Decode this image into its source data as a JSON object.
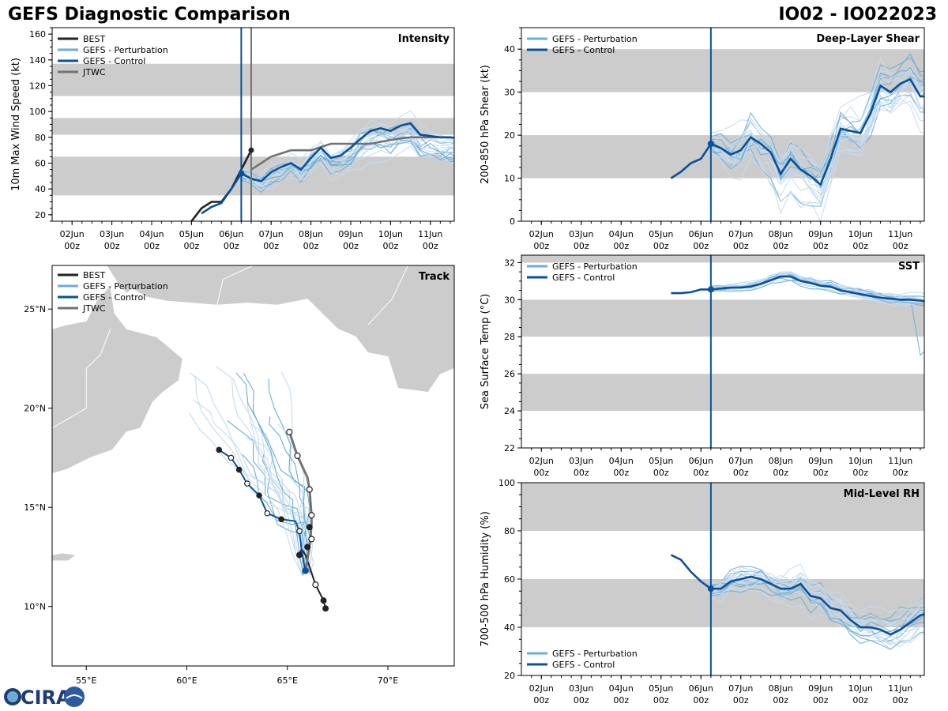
{
  "header": {
    "title_left": "GEFS Diagnostic Comparison",
    "title_right": "IO02 - IO022023"
  },
  "logo": {
    "text": "CIRA",
    "icon": "cira-logo"
  },
  "colors": {
    "best": "#222222",
    "perturbation": "#6baed6",
    "perturbation_light": "#c6dbef",
    "control": "#08519c",
    "jtwc": "#737373",
    "band": "#cccccc",
    "land": "#cccccc"
  },
  "time_ticks": [
    "02Jun\n00z",
    "03Jun\n00z",
    "04Jun\n00z",
    "05Jun\n00z",
    "06Jun\n00z",
    "07Jun\n00z",
    "08Jun\n00z",
    "09Jun\n00z",
    "10Jun\n00z",
    "11Jun\n00z"
  ],
  "chart_data": [
    {
      "id": "intensity",
      "type": "line",
      "title": "Intensity",
      "ylabel": "10m Max Wind Speed (kt)",
      "xlim": [
        0.5,
        10.6
      ],
      "ylim": [
        15,
        165
      ],
      "yticks": [
        20,
        40,
        60,
        80,
        100,
        120,
        140,
        160
      ],
      "bands": [
        [
          35,
          65
        ],
        [
          82,
          95
        ],
        [
          112,
          137
        ]
      ],
      "init_time": 5.25,
      "jtwc_time": 5.5,
      "legend": [
        "BEST",
        "GEFS - Perturbation",
        "GEFS - Control",
        "JTWC"
      ],
      "series": [
        {
          "name": "BEST",
          "x": [
            4.0,
            4.25,
            4.5,
            4.75,
            5.0,
            5.25,
            5.5
          ],
          "values": [
            15,
            25,
            30,
            30,
            40,
            55,
            70
          ]
        },
        {
          "name": "JTWC",
          "x": [
            5.5,
            6.0,
            6.5,
            7.0,
            7.5,
            8.0,
            8.5,
            9.0,
            9.5,
            10.0,
            10.5
          ],
          "values": [
            55,
            65,
            70,
            70,
            75,
            75,
            75,
            78,
            80,
            80,
            80
          ]
        },
        {
          "name": "GEFS - Control",
          "x": [
            4.25,
            4.5,
            4.75,
            5.0,
            5.25,
            5.5,
            5.75,
            6.0,
            6.25,
            6.5,
            6.75,
            7.0,
            7.25,
            7.5,
            7.75,
            8.0,
            8.25,
            8.5,
            8.75,
            9.0,
            9.25,
            9.5,
            9.75,
            10.0,
            10.25,
            10.5,
            10.75
          ],
          "values": [
            21,
            26,
            29,
            40,
            52,
            48,
            46,
            53,
            57,
            60,
            55,
            64,
            72,
            64,
            66,
            72,
            79,
            85,
            87,
            85,
            89,
            91,
            82,
            81,
            80,
            80,
            79
          ]
        }
      ],
      "perturbation_seeds": [
        1,
        2,
        3,
        4,
        5,
        6,
        7,
        8,
        9,
        10,
        11,
        12,
        13,
        14,
        15,
        16,
        17,
        18,
        19,
        20
      ]
    },
    {
      "id": "shear",
      "type": "line",
      "title": "Deep-Layer Shear",
      "ylabel": "200-850 hPa Shear (kt)",
      "xlim": [
        0.5,
        10.6
      ],
      "ylim": [
        0,
        45
      ],
      "yticks": [
        0,
        10,
        20,
        30,
        40
      ],
      "bands": [
        [
          10,
          20
        ],
        [
          30,
          40
        ]
      ],
      "init_time": 5.25,
      "legend": [
        "GEFS - Perturbation",
        "GEFS - Control"
      ],
      "series": [
        {
          "name": "GEFS - Control",
          "x": [
            4.25,
            4.5,
            4.75,
            5.0,
            5.25,
            5.5,
            5.75,
            6.0,
            6.25,
            6.5,
            6.75,
            7.0,
            7.25,
            7.5,
            7.75,
            8.0,
            8.25,
            8.5,
            8.75,
            9.0,
            9.25,
            9.5,
            9.75,
            10.0,
            10.25,
            10.5,
            10.75
          ],
          "values": [
            10,
            11.5,
            13.5,
            14.5,
            18,
            17,
            15.5,
            16.5,
            19.5,
            18,
            16,
            11,
            14.5,
            12,
            10.5,
            8.5,
            14.5,
            21.5,
            21,
            20.5,
            25,
            31.5,
            30,
            32,
            33,
            29,
            29
          ]
        }
      ],
      "perturbation_seeds": [
        21,
        22,
        23,
        24,
        25,
        26,
        27,
        28,
        29,
        30,
        31,
        32,
        33,
        34,
        35,
        36,
        37,
        38,
        39,
        40
      ]
    },
    {
      "id": "sst",
      "type": "line",
      "title": "SST",
      "ylabel": "Sea Surface Temp (°C)",
      "xlim": [
        0.5,
        10.6
      ],
      "ylim": [
        22,
        32.4
      ],
      "yticks": [
        22,
        24,
        26,
        28,
        30,
        32
      ],
      "bands": [
        [
          24,
          26
        ],
        [
          28,
          30
        ],
        [
          32,
          34
        ]
      ],
      "init_time": 5.25,
      "legend": [
        "GEFS - Perturbation",
        "GEFS - Control"
      ],
      "series": [
        {
          "name": "GEFS - Control",
          "x": [
            4.25,
            4.5,
            4.75,
            5.0,
            5.25,
            5.5,
            5.75,
            6.0,
            6.25,
            6.5,
            6.75,
            7.0,
            7.25,
            7.5,
            7.75,
            8.0,
            8.25,
            8.5,
            8.75,
            9.0,
            9.25,
            9.5,
            9.75,
            10.0,
            10.25,
            10.5,
            10.75
          ],
          "values": [
            30.35,
            30.35,
            30.4,
            30.55,
            30.55,
            30.6,
            30.65,
            30.65,
            30.7,
            30.85,
            31.05,
            31.25,
            31.25,
            31.0,
            30.9,
            30.75,
            30.7,
            30.5,
            30.4,
            30.3,
            30.2,
            30.1,
            30.05,
            30.0,
            30.0,
            29.95,
            29.85
          ]
        }
      ],
      "perturbation_seeds": [
        41,
        42,
        43,
        44,
        45,
        46,
        47,
        48,
        49,
        50,
        51,
        52,
        53,
        54,
        55,
        56,
        57,
        58,
        59,
        60
      ]
    },
    {
      "id": "rh",
      "type": "line",
      "title": "Mid-Level RH",
      "ylabel": "700-500 hPa Humidity (%)",
      "xlim": [
        0.5,
        10.6
      ],
      "ylim": [
        20,
        100
      ],
      "yticks": [
        20,
        40,
        60,
        80,
        100
      ],
      "bands": [
        [
          40,
          60
        ],
        [
          80,
          100
        ]
      ],
      "init_time": 5.25,
      "legend": [
        "GEFS - Perturbation",
        "GEFS - Control"
      ],
      "series": [
        {
          "name": "GEFS - Control",
          "x": [
            4.25,
            4.5,
            4.75,
            5.0,
            5.25,
            5.5,
            5.75,
            6.0,
            6.25,
            6.5,
            6.75,
            7.0,
            7.25,
            7.5,
            7.75,
            8.0,
            8.25,
            8.5,
            8.75,
            9.0,
            9.25,
            9.5,
            9.75,
            10.0,
            10.25,
            10.5,
            10.75
          ],
          "values": [
            70,
            68,
            63,
            59,
            56,
            56,
            59,
            60,
            61,
            60,
            58,
            56,
            56,
            58,
            53,
            52,
            48,
            47,
            43,
            40,
            40,
            39,
            37,
            39,
            42,
            45,
            46
          ]
        }
      ],
      "perturbation_seeds": [
        61,
        62,
        63,
        64,
        65,
        66,
        67,
        68,
        69,
        70,
        71,
        72,
        73,
        74,
        75,
        76,
        77,
        78,
        79,
        80
      ]
    },
    {
      "id": "track",
      "type": "line",
      "title": "Track",
      "xlim": [
        53.3,
        73.3
      ],
      "ylim": [
        7.0,
        27.2
      ],
      "xticks": [
        55,
        60,
        65,
        70
      ],
      "xtick_labels": [
        "55°E",
        "60°E",
        "65°E",
        "70°E"
      ],
      "yticks": [
        10,
        15,
        20,
        25
      ],
      "ytick_labels": [
        "10°N",
        "15°N",
        "20°N",
        "25°N"
      ],
      "legend": [
        "BEST",
        "GEFS - Perturbation",
        "GEFS - Control",
        "JTWC"
      ],
      "series": [
        {
          "name": "BEST",
          "lon": [
            66.9,
            66.8,
            66.4,
            66.1,
            65.9,
            65.7,
            65.6
          ],
          "lat": [
            9.9,
            10.3,
            11.1,
            12.0,
            12.6,
            12.9,
            12.6
          ]
        },
        {
          "name": "JTWC",
          "lon": [
            65.9,
            66.0,
            66.15,
            66.2,
            66.2,
            66.1,
            66.0,
            65.5,
            65.1
          ],
          "lat": [
            11.8,
            12.4,
            13.4,
            14.2,
            14.6,
            15.9,
            16.5,
            17.6,
            18.8
          ]
        },
        {
          "name": "GEFS - Control",
          "lon": [
            65.9,
            65.8,
            65.7,
            65.6,
            65.4,
            64.7,
            64.0,
            63.6,
            63.0,
            62.6,
            62.2,
            61.6
          ],
          "lat": [
            11.8,
            12.3,
            12.9,
            13.8,
            14.3,
            14.4,
            14.7,
            15.6,
            16.2,
            16.9,
            17.5,
            17.9
          ]
        }
      ],
      "best_markers": {
        "filled": [
          [
            66.9,
            9.9
          ],
          [
            66.8,
            10.3
          ],
          [
            66.0,
            13.0
          ],
          [
            65.6,
            12.6
          ],
          [
            66.1,
            14.0
          ]
        ],
        "open": [
          [
            66.4,
            11.1
          ],
          [
            66.2,
            13.4
          ]
        ]
      },
      "jtwc_markers": [
        [
          65.9,
          11.8
        ],
        [
          66.2,
          14.6
        ],
        [
          66.1,
          15.9
        ],
        [
          65.5,
          17.6
        ],
        [
          65.1,
          18.8
        ]
      ],
      "control_markers": {
        "filled": [
          [
            64.7,
            14.4
          ],
          [
            63.6,
            15.6
          ],
          [
            62.6,
            16.9
          ],
          [
            61.6,
            17.9
          ]
        ],
        "open": [
          [
            64.0,
            14.7
          ],
          [
            65.6,
            13.8
          ],
          [
            63.0,
            16.2
          ],
          [
            62.2,
            17.5
          ]
        ]
      },
      "perturbation_seeds": [
        81,
        82,
        83,
        84,
        85,
        86,
        87,
        88,
        89,
        90,
        91,
        92,
        93,
        94,
        95,
        96,
        97,
        98,
        99,
        100
      ]
    }
  ]
}
